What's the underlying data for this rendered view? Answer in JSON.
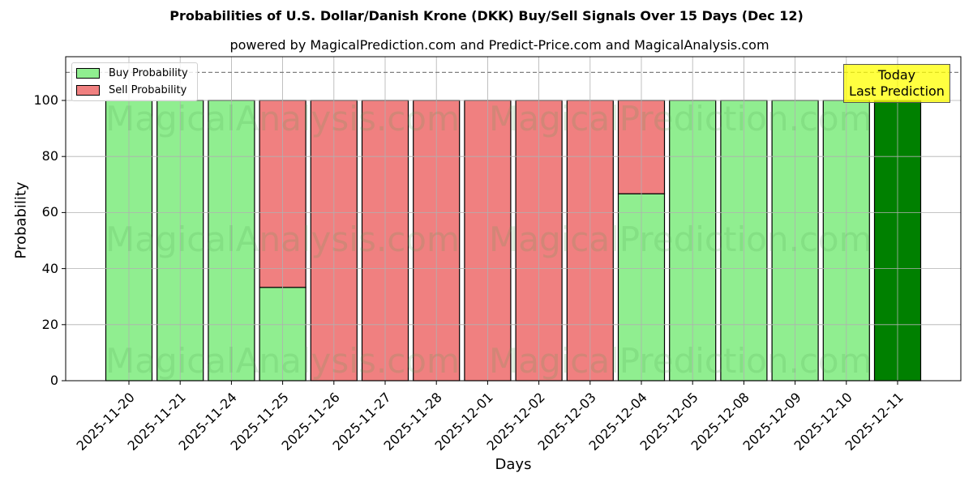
{
  "title": "Probabilities of U.S. Dollar/Danish Krone (DKK) Buy/Sell Signals Over 15 Days (Dec 12)",
  "subtitle": "powered by MagicalPrediction.com and Predict-Price.com and MagicalAnalysis.com",
  "legend": {
    "buy_label": "Buy Probability",
    "sell_label": "Sell Probability",
    "buy_color": "#90ee90",
    "sell_color": "#f08080"
  },
  "annotation": {
    "line1": "Today",
    "line2": "Last Prediction",
    "box_color": "#ffff00"
  },
  "watermarks": [
    "MagicalAnalysis.com",
    "MagicalPrediction.com"
  ],
  "chart_data": {
    "type": "bar",
    "stacked": true,
    "title": "Probabilities of U.S. Dollar/Danish Krone (DKK) Buy/Sell Signals Over 15 Days (Dec 12)",
    "subtitle": "powered by MagicalPrediction.com and Predict-Price.com and MagicalAnalysis.com",
    "xlabel": "Days",
    "ylabel": "Probability",
    "ylim": [
      0,
      115
    ],
    "yticks": [
      0,
      20,
      40,
      60,
      80,
      100
    ],
    "grid": true,
    "legend_position": "upper left",
    "reference_line": {
      "y": 110,
      "style": "dashed",
      "color": "#808080"
    },
    "categories": [
      "2025-11-20",
      "2025-11-21",
      "2025-11-24",
      "2025-11-25",
      "2025-11-26",
      "2025-11-27",
      "2025-11-28",
      "2025-12-01",
      "2025-12-02",
      "2025-12-03",
      "2025-12-04",
      "2025-12-05",
      "2025-12-08",
      "2025-12-09",
      "2025-12-10",
      "2025-12-11"
    ],
    "series": [
      {
        "name": "Buy Probability",
        "color": "#90ee90",
        "values": [
          100,
          100,
          100,
          33.3,
          0,
          0,
          0,
          0,
          0,
          0,
          66.7,
          100,
          100,
          100,
          100,
          100
        ]
      },
      {
        "name": "Sell Probability",
        "color": "#f08080",
        "values": [
          0,
          0,
          0,
          66.7,
          100,
          100,
          100,
          100,
          100,
          100,
          33.3,
          0,
          0,
          0,
          0,
          0
        ]
      }
    ],
    "highlight": {
      "category": "2025-12-11",
      "color": "#008000",
      "label": "Today\nLast Prediction"
    }
  }
}
